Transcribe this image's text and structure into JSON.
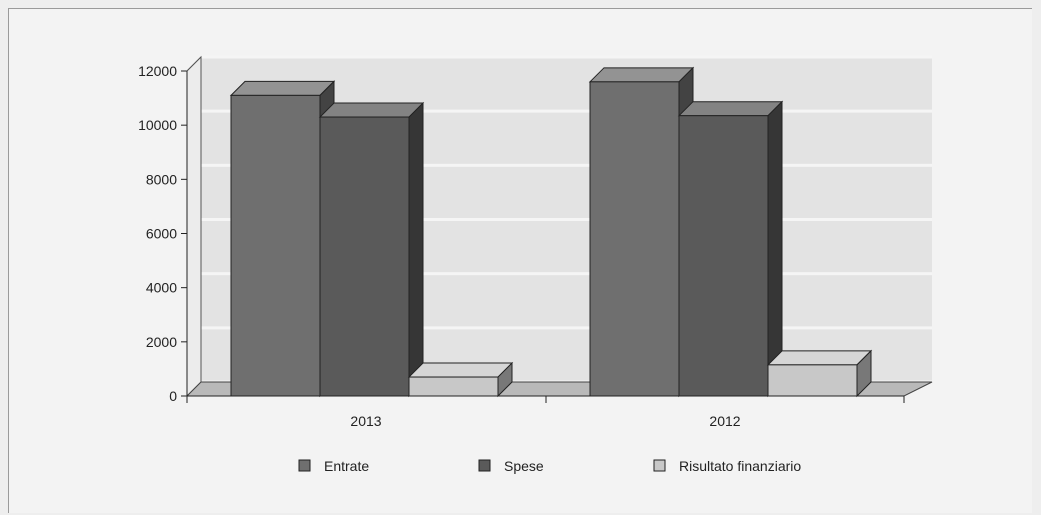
{
  "chart_data": {
    "type": "bar",
    "categories": [
      "2013",
      "2012"
    ],
    "series": [
      {
        "name": "Entrate",
        "values": [
          11100,
          11600
        ],
        "color": "#6f6f6f"
      },
      {
        "name": "Spese",
        "values": [
          10300,
          10350
        ],
        "color": "#5a5a5a"
      },
      {
        "name": "Risultato finanziario",
        "values": [
          700,
          1150
        ],
        "color": "#c8c8c8"
      }
    ],
    "y_ticks": [
      "0",
      "2000",
      "4000",
      "6000",
      "8000",
      "10000",
      "12000"
    ],
    "ylim": [
      0,
      12000
    ],
    "three_d": true,
    "grid": true,
    "legend_position": "bottom"
  }
}
